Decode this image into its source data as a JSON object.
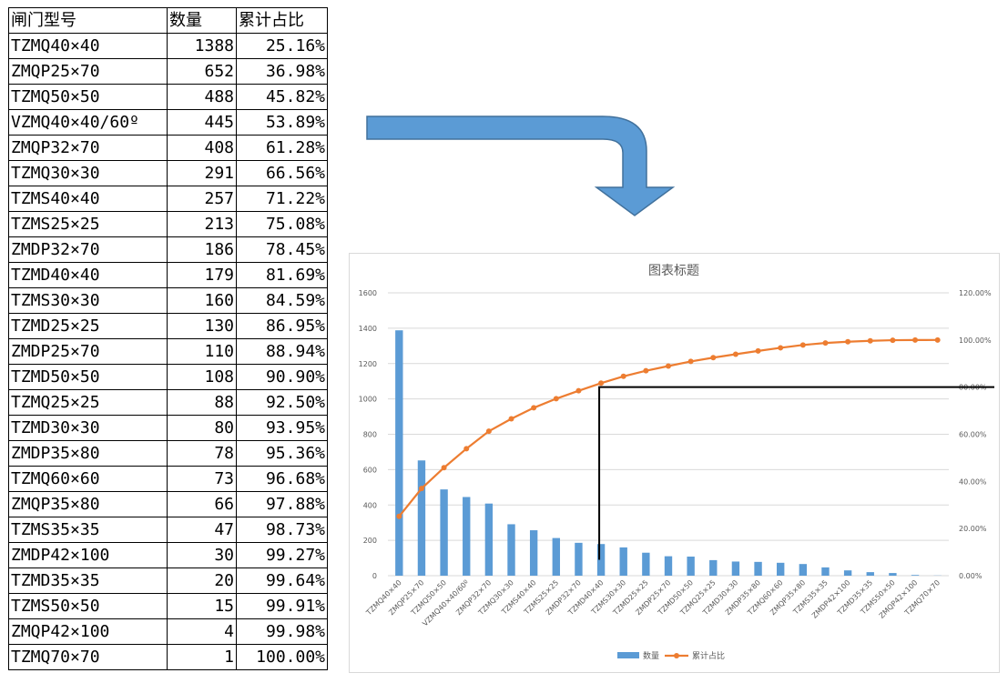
{
  "table": {
    "headers": [
      "闸门型号",
      "数量",
      "累计占比"
    ],
    "rows": [
      [
        "TZMQ40×40",
        "1388",
        "25.16%"
      ],
      [
        "ZMQP25×70",
        "652",
        "36.98%"
      ],
      [
        "TZMQ50×50",
        "488",
        "45.82%"
      ],
      [
        "VZMQ40×40/60º",
        "445",
        "53.89%"
      ],
      [
        "ZMQP32×70",
        "408",
        "61.28%"
      ],
      [
        "TZMQ30×30",
        "291",
        "66.56%"
      ],
      [
        "TZMS40×40",
        "257",
        "71.22%"
      ],
      [
        "TZMS25×25",
        "213",
        "75.08%"
      ],
      [
        "ZMDP32×70",
        "186",
        "78.45%"
      ],
      [
        "TZMD40×40",
        "179",
        "81.69%"
      ],
      [
        "TZMS30×30",
        "160",
        "84.59%"
      ],
      [
        "TZMD25×25",
        "130",
        "86.95%"
      ],
      [
        "ZMDP25×70",
        "110",
        "88.94%"
      ],
      [
        "TZMD50×50",
        "108",
        "90.90%"
      ],
      [
        "TZMQ25×25",
        "88",
        "92.50%"
      ],
      [
        "TZMD30×30",
        "80",
        "93.95%"
      ],
      [
        "ZMDP35×80",
        "78",
        "95.36%"
      ],
      [
        "TZMQ60×60",
        "73",
        "96.68%"
      ],
      [
        "ZMQP35×80",
        "66",
        "97.88%"
      ],
      [
        "TZMS35×35",
        "47",
        "98.73%"
      ],
      [
        "ZMDP42×100",
        "30",
        "99.27%"
      ],
      [
        "TZMD35×35",
        "20",
        "99.64%"
      ],
      [
        "TZMS50×50",
        "15",
        "99.91%"
      ],
      [
        "ZMQP42×100",
        "4",
        "99.98%"
      ],
      [
        "TZMQ70×70",
        "1",
        "100.00%"
      ]
    ]
  },
  "arrow": {
    "color": "#5b9bd5",
    "stroke": "#41719c",
    "icon": "curved-down-arrow"
  },
  "chart_data": {
    "type": "bar",
    "title": "图表标题",
    "categories": [
      "TZMQ40×40",
      "ZMQP25×70",
      "TZMQ50×50",
      "VZMQ40×40/60º",
      "ZMQP32×70",
      "TZMQ30×30",
      "TZMS40×40",
      "TZMS25×25",
      "ZMDP32×70",
      "TZMD40×40",
      "TZMS30×30",
      "TZMD25×25",
      "ZMDP25×70",
      "TZMD50×50",
      "TZMQ25×25",
      "TZMD30×30",
      "ZMDP35×80",
      "TZMQ60×60",
      "ZMQP35×80",
      "TZMS35×35",
      "ZMDP42×100",
      "TZMD35×35",
      "TZMS50×50",
      "ZMQP42×100",
      "TZMQ70×70"
    ],
    "series": [
      {
        "name": "数量",
        "type": "bar",
        "axis": "left",
        "color": "#5b9bd5",
        "values": [
          1388,
          652,
          488,
          445,
          408,
          291,
          257,
          213,
          186,
          179,
          160,
          130,
          110,
          108,
          88,
          80,
          78,
          73,
          66,
          47,
          30,
          20,
          15,
          4,
          1
        ]
      },
      {
        "name": "累计占比",
        "type": "line",
        "axis": "right",
        "color": "#ed7d31",
        "values": [
          25.16,
          36.98,
          45.82,
          53.89,
          61.28,
          66.56,
          71.22,
          75.08,
          78.45,
          81.69,
          84.59,
          86.95,
          88.94,
          90.9,
          92.5,
          93.95,
          95.36,
          96.68,
          97.88,
          98.73,
          99.27,
          99.64,
          99.91,
          99.98,
          100.0
        ]
      }
    ],
    "y_left": {
      "min": 0,
      "max": 1600,
      "ticks": [
        "0",
        "200",
        "400",
        "600",
        "800",
        "1000",
        "1200",
        "1400",
        "1600"
      ]
    },
    "y_right": {
      "min": 0,
      "max": 120,
      "ticks": [
        "0.00%",
        "20.00%",
        "40.00%",
        "60.00%",
        "80.00%",
        "100.00%",
        "120.00%"
      ]
    },
    "grid": true,
    "legend": "bottom",
    "annotation": {
      "type": "threshold-line",
      "category": "TZMD40×40",
      "y_right": 80,
      "y_left_bottom": 90,
      "color": "#000000"
    }
  }
}
